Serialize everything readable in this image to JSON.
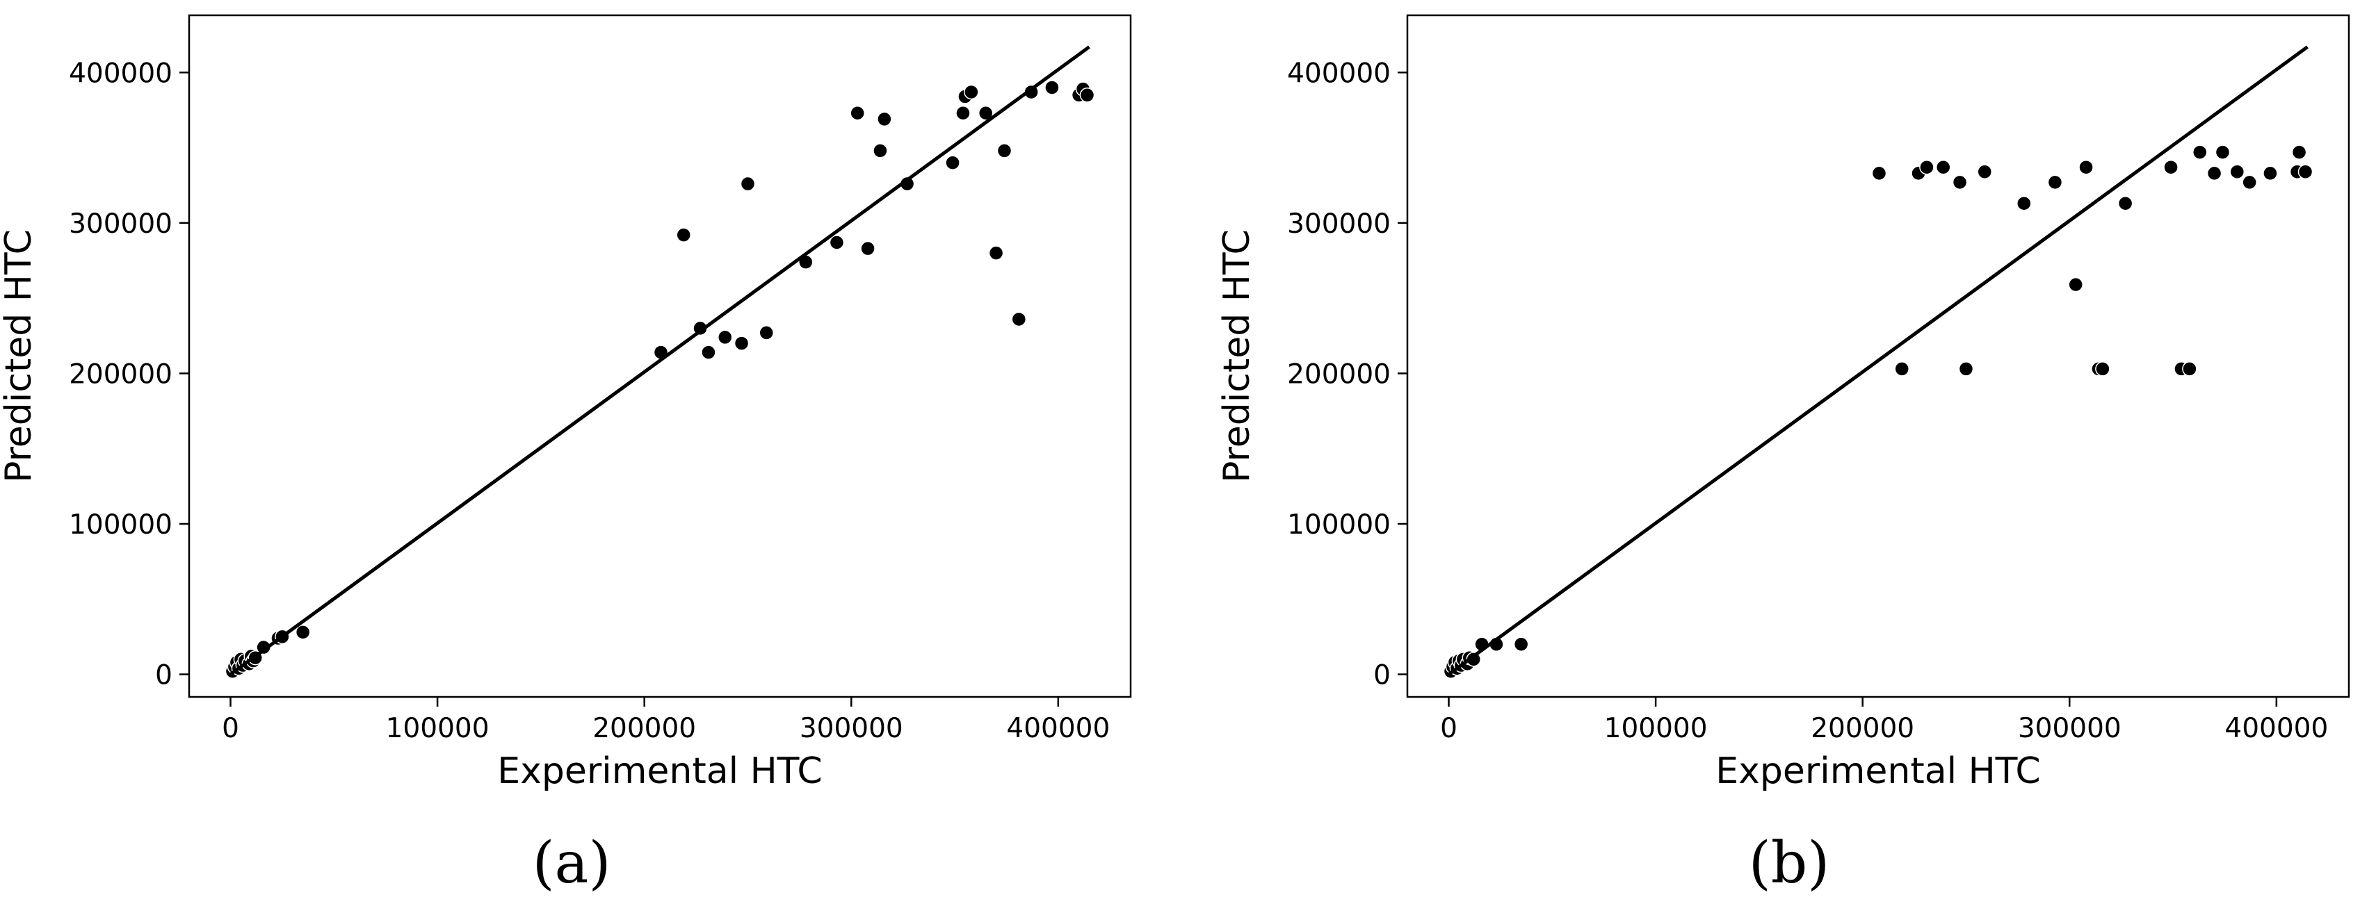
{
  "figure": {
    "captions": [
      "(a)",
      "(b)"
    ]
  },
  "chart_data": [
    {
      "type": "scatter",
      "panel_label": "(a)",
      "xlabel": "Experimental HTC",
      "ylabel": "Predicted HTC",
      "xlim": [
        -20000,
        435000
      ],
      "ylim": [
        -15000,
        438000
      ],
      "xticks": [
        0,
        100000,
        200000,
        300000,
        400000
      ],
      "yticks": [
        0,
        100000,
        200000,
        300000,
        400000
      ],
      "grid": false,
      "marker_color": "#000000",
      "line_color": "#000000",
      "fit_line": {
        "x": [
          0,
          415000
        ],
        "y": [
          0,
          417000
        ]
      },
      "points": [
        {
          "x": 1000,
          "y": 2000
        },
        {
          "x": 2000,
          "y": 5000
        },
        {
          "x": 3000,
          "y": 8000
        },
        {
          "x": 4000,
          "y": 4000
        },
        {
          "x": 5000,
          "y": 10000
        },
        {
          "x": 6000,
          "y": 6000
        },
        {
          "x": 7000,
          "y": 9000
        },
        {
          "x": 9000,
          "y": 7000
        },
        {
          "x": 10000,
          "y": 12000
        },
        {
          "x": 11000,
          "y": 9000
        },
        {
          "x": 12000,
          "y": 11000
        },
        {
          "x": 16000,
          "y": 18000
        },
        {
          "x": 23000,
          "y": 24000
        },
        {
          "x": 25000,
          "y": 25000
        },
        {
          "x": 35000,
          "y": 28000
        },
        {
          "x": 208000,
          "y": 214000
        },
        {
          "x": 219000,
          "y": 292000
        },
        {
          "x": 227000,
          "y": 230000
        },
        {
          "x": 231000,
          "y": 214000
        },
        {
          "x": 239000,
          "y": 224000
        },
        {
          "x": 247000,
          "y": 220000
        },
        {
          "x": 250000,
          "y": 326000
        },
        {
          "x": 259000,
          "y": 227000
        },
        {
          "x": 278000,
          "y": 274000
        },
        {
          "x": 293000,
          "y": 287000
        },
        {
          "x": 303000,
          "y": 373000
        },
        {
          "x": 308000,
          "y": 283000
        },
        {
          "x": 314000,
          "y": 348000
        },
        {
          "x": 316000,
          "y": 369000
        },
        {
          "x": 327000,
          "y": 326000
        },
        {
          "x": 349000,
          "y": 340000
        },
        {
          "x": 354000,
          "y": 373000
        },
        {
          "x": 355000,
          "y": 384000
        },
        {
          "x": 358000,
          "y": 387000
        },
        {
          "x": 365000,
          "y": 373000
        },
        {
          "x": 370000,
          "y": 280000
        },
        {
          "x": 374000,
          "y": 348000
        },
        {
          "x": 381000,
          "y": 236000
        },
        {
          "x": 387000,
          "y": 387000
        },
        {
          "x": 397000,
          "y": 390000
        },
        {
          "x": 410000,
          "y": 385000
        },
        {
          "x": 412000,
          "y": 389000
        },
        {
          "x": 414000,
          "y": 385000
        }
      ]
    },
    {
      "type": "scatter",
      "panel_label": "(b)",
      "xlabel": "Experimental HTC",
      "ylabel": "Predicted HTC",
      "xlim": [
        -20000,
        435000
      ],
      "ylim": [
        -15000,
        438000
      ],
      "xticks": [
        0,
        100000,
        200000,
        300000,
        400000
      ],
      "yticks": [
        0,
        100000,
        200000,
        300000,
        400000
      ],
      "grid": false,
      "marker_color": "#000000",
      "line_color": "#000000",
      "fit_line": {
        "x": [
          0,
          415000
        ],
        "y": [
          0,
          417000
        ]
      },
      "points": [
        {
          "x": 1000,
          "y": 2000
        },
        {
          "x": 2000,
          "y": 5000
        },
        {
          "x": 3000,
          "y": 8000
        },
        {
          "x": 4000,
          "y": 4000
        },
        {
          "x": 5000,
          "y": 9000
        },
        {
          "x": 6000,
          "y": 6000
        },
        {
          "x": 7000,
          "y": 10000
        },
        {
          "x": 9000,
          "y": 7000
        },
        {
          "x": 10000,
          "y": 11000
        },
        {
          "x": 12000,
          "y": 10000
        },
        {
          "x": 16000,
          "y": 20000
        },
        {
          "x": 23000,
          "y": 20000
        },
        {
          "x": 35000,
          "y": 20000
        },
        {
          "x": 208000,
          "y": 333000
        },
        {
          "x": 219000,
          "y": 203000
        },
        {
          "x": 227000,
          "y": 333000
        },
        {
          "x": 231000,
          "y": 337000
        },
        {
          "x": 239000,
          "y": 337000
        },
        {
          "x": 247000,
          "y": 327000
        },
        {
          "x": 250000,
          "y": 203000
        },
        {
          "x": 259000,
          "y": 334000
        },
        {
          "x": 278000,
          "y": 313000
        },
        {
          "x": 293000,
          "y": 327000
        },
        {
          "x": 303000,
          "y": 259000
        },
        {
          "x": 308000,
          "y": 337000
        },
        {
          "x": 314000,
          "y": 203000
        },
        {
          "x": 316000,
          "y": 203000
        },
        {
          "x": 327000,
          "y": 313000
        },
        {
          "x": 349000,
          "y": 337000
        },
        {
          "x": 354000,
          "y": 203000
        },
        {
          "x": 358000,
          "y": 203000
        },
        {
          "x": 363000,
          "y": 347000
        },
        {
          "x": 370000,
          "y": 333000
        },
        {
          "x": 374000,
          "y": 347000
        },
        {
          "x": 381000,
          "y": 334000
        },
        {
          "x": 387000,
          "y": 327000
        },
        {
          "x": 397000,
          "y": 333000
        },
        {
          "x": 410000,
          "y": 334000
        },
        {
          "x": 411000,
          "y": 347000
        },
        {
          "x": 414000,
          "y": 334000
        }
      ]
    }
  ]
}
